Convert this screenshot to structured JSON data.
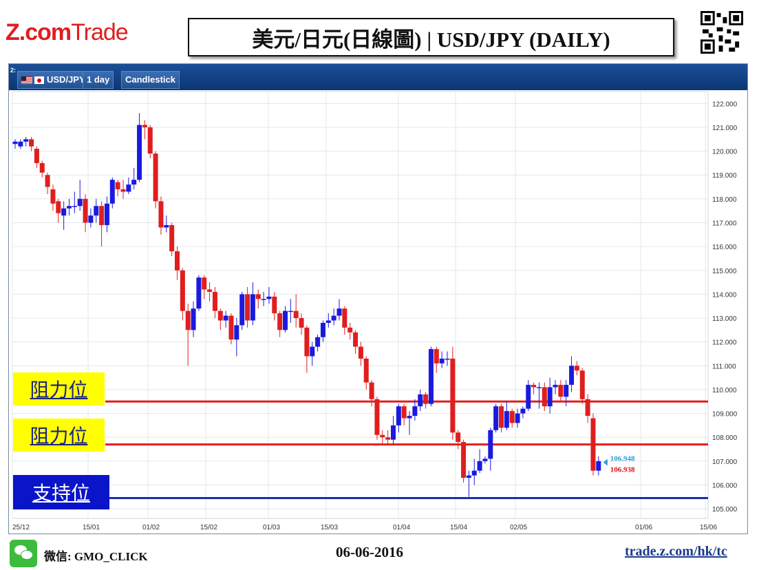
{
  "header": {
    "logo_main": "Z.com",
    "logo_sub": "Trade",
    "title": "美元/日元(日線圖) | USD/JPY (DAILY)"
  },
  "toolbar": {
    "panel_number": "2:",
    "symbol": "USD/JPY",
    "timeframe": "1 day",
    "chart_style": "Candlestick"
  },
  "levels": [
    {
      "label": "阻力位",
      "price": 109.5,
      "bg": "#ffff00",
      "fg": "#1a237e",
      "line": "#e01e1e"
    },
    {
      "label": "阻力位",
      "price": 107.7,
      "bg": "#ffff00",
      "fg": "#1a237e",
      "line": "#e01e1e"
    },
    {
      "label": "支持位",
      "price": 105.45,
      "bg": "#0a14c8",
      "fg": "#ffffff",
      "line": "#1a2ea8"
    }
  ],
  "price_tags": {
    "bid": "106.948",
    "ask": "106.938",
    "bid_color": "#2a9bd6",
    "ask_color": "#d01818"
  },
  "footer": {
    "wechat": "微信: GMO_CLICK",
    "date": "06-06-2016",
    "url": "trade.z.com/hk/tc"
  },
  "colors": {
    "up": "#1a1adf",
    "down": "#e01e1e",
    "toolbar": "#1a4f98"
  },
  "chart_data": {
    "type": "candlestick",
    "ylim": [
      104.6,
      122.5
    ],
    "y_ticks": [
      "122.000",
      "121.000",
      "120.000",
      "119.000",
      "118.000",
      "117.000",
      "116.000",
      "115.000",
      "114.000",
      "113.000",
      "112.000",
      "111.000",
      "110.000",
      "109.000",
      "108.000",
      "107.000",
      "106.000",
      "105.000"
    ],
    "x_ticks": [
      "25/12",
      "15/01",
      "01/02",
      "15/02",
      "01/03",
      "15/03",
      "01/04",
      "15/04",
      "02/05",
      "01/06",
      "15/06"
    ],
    "candles": [
      [
        120.3,
        120.4,
        120.1,
        120.5
      ],
      [
        120.2,
        120.4,
        120.1,
        120.5
      ],
      [
        120.4,
        120.5,
        120.2,
        120.6
      ],
      [
        120.5,
        120.2,
        120.0,
        120.6
      ],
      [
        120.1,
        119.5,
        119.3,
        120.2
      ],
      [
        119.5,
        119.1,
        118.9,
        119.6
      ],
      [
        119.0,
        118.5,
        118.2,
        119.1
      ],
      [
        118.4,
        117.8,
        117.5,
        118.6
      ],
      [
        117.9,
        117.4,
        117.0,
        118.0
      ],
      [
        117.3,
        117.6,
        116.7,
        117.9
      ],
      [
        117.6,
        117.7,
        117.3,
        118.0
      ],
      [
        117.7,
        117.7,
        117.4,
        118.3
      ],
      [
        117.7,
        118.0,
        117.5,
        118.8
      ],
      [
        118.0,
        117.0,
        116.6,
        118.2
      ],
      [
        117.0,
        117.3,
        116.8,
        117.6
      ],
      [
        117.3,
        117.7,
        117.0,
        118.0
      ],
      [
        117.7,
        116.9,
        116.0,
        117.9
      ],
      [
        116.9,
        117.8,
        116.6,
        118.1
      ],
      [
        117.8,
        118.8,
        117.6,
        118.9
      ],
      [
        118.7,
        118.4,
        118.1,
        118.8
      ],
      [
        118.4,
        118.3,
        118.0,
        118.8
      ],
      [
        118.3,
        118.6,
        118.2,
        118.9
      ],
      [
        118.6,
        118.8,
        118.4,
        119.3
      ],
      [
        118.8,
        121.1,
        118.7,
        121.6
      ],
      [
        121.1,
        121.0,
        120.5,
        121.3
      ],
      [
        121.0,
        119.9,
        119.7,
        121.1
      ],
      [
        119.9,
        117.9,
        117.6,
        120.0
      ],
      [
        117.9,
        116.8,
        116.5,
        118.1
      ],
      [
        116.8,
        116.9,
        116.6,
        117.3
      ],
      [
        116.9,
        115.8,
        115.6,
        117.0
      ],
      [
        115.8,
        115.0,
        114.6,
        116.0
      ],
      [
        115.0,
        113.3,
        112.9,
        115.1
      ],
      [
        113.3,
        112.5,
        111.0,
        113.6
      ],
      [
        112.5,
        113.4,
        112.2,
        113.7
      ],
      [
        113.4,
        114.7,
        113.3,
        114.8
      ],
      [
        114.7,
        114.2,
        113.8,
        114.8
      ],
      [
        114.2,
        114.1,
        113.7,
        114.5
      ],
      [
        114.1,
        113.3,
        113.0,
        114.3
      ],
      [
        113.3,
        112.9,
        112.5,
        113.4
      ],
      [
        112.9,
        113.1,
        112.6,
        113.3
      ],
      [
        113.1,
        112.1,
        111.9,
        113.2
      ],
      [
        112.1,
        112.7,
        111.4,
        113.0
      ],
      [
        112.7,
        114.0,
        112.5,
        114.1
      ],
      [
        114.0,
        112.9,
        112.6,
        114.3
      ],
      [
        112.9,
        114.0,
        112.7,
        114.5
      ],
      [
        114.0,
        113.8,
        113.4,
        114.2
      ],
      [
        113.8,
        113.8,
        113.5,
        114.1
      ],
      [
        113.8,
        113.9,
        113.6,
        114.3
      ],
      [
        113.9,
        113.2,
        112.9,
        114.1
      ],
      [
        113.2,
        112.5,
        112.2,
        113.3
      ],
      [
        112.5,
        113.3,
        112.4,
        113.5
      ],
      [
        113.3,
        113.3,
        112.8,
        113.8
      ],
      [
        113.3,
        113.0,
        112.6,
        114.0
      ],
      [
        113.0,
        112.6,
        112.3,
        113.2
      ],
      [
        112.6,
        111.4,
        110.7,
        112.7
      ],
      [
        111.4,
        111.8,
        111.0,
        112.0
      ],
      [
        111.8,
        112.2,
        111.6,
        112.3
      ],
      [
        112.2,
        112.8,
        112.0,
        112.9
      ],
      [
        112.8,
        112.9,
        112.6,
        113.2
      ],
      [
        112.9,
        113.1,
        112.7,
        113.4
      ],
      [
        113.1,
        113.4,
        112.9,
        113.8
      ],
      [
        113.4,
        112.6,
        112.3,
        113.5
      ],
      [
        112.6,
        112.4,
        112.1,
        112.8
      ],
      [
        112.4,
        111.8,
        111.5,
        112.5
      ],
      [
        111.8,
        111.3,
        111.0,
        112.0
      ],
      [
        111.3,
        110.3,
        110.0,
        111.4
      ],
      [
        110.3,
        109.6,
        109.3,
        110.4
      ],
      [
        109.6,
        108.1,
        107.9,
        109.7
      ],
      [
        108.1,
        108.0,
        107.7,
        108.3
      ],
      [
        108.0,
        107.9,
        107.7,
        108.3
      ],
      [
        107.9,
        108.5,
        107.7,
        108.9
      ],
      [
        108.5,
        109.3,
        108.2,
        109.4
      ],
      [
        109.3,
        108.8,
        108.5,
        109.4
      ],
      [
        108.8,
        108.9,
        108.1,
        109.1
      ],
      [
        108.9,
        109.3,
        108.7,
        109.6
      ],
      [
        109.3,
        109.8,
        109.1,
        110.0
      ],
      [
        109.8,
        109.4,
        109.2,
        109.9
      ],
      [
        109.4,
        111.7,
        109.3,
        111.8
      ],
      [
        111.7,
        111.1,
        110.7,
        111.8
      ],
      [
        111.1,
        111.3,
        110.9,
        111.6
      ],
      [
        111.3,
        111.3,
        111.0,
        111.6
      ],
      [
        111.3,
        108.2,
        107.9,
        111.8
      ],
      [
        108.2,
        107.8,
        107.5,
        108.3
      ],
      [
        107.8,
        106.3,
        106.1,
        107.9
      ],
      [
        106.3,
        106.4,
        105.5,
        106.6
      ],
      [
        106.4,
        106.6,
        106.0,
        107.1
      ],
      [
        106.6,
        107.0,
        106.5,
        107.5
      ],
      [
        107.0,
        107.1,
        106.9,
        107.2
      ],
      [
        107.1,
        108.3,
        106.6,
        108.4
      ],
      [
        108.3,
        109.3,
        108.2,
        109.4
      ],
      [
        109.3,
        108.4,
        108.2,
        109.4
      ],
      [
        108.4,
        109.1,
        108.3,
        109.5
      ],
      [
        109.1,
        108.6,
        108.4,
        109.2
      ],
      [
        108.6,
        109.0,
        108.4,
        109.2
      ],
      [
        109.0,
        109.2,
        108.8,
        109.3
      ],
      [
        109.2,
        110.2,
        109.1,
        110.4
      ],
      [
        110.2,
        110.1,
        109.8,
        110.3
      ],
      [
        110.1,
        110.1,
        109.2,
        110.3
      ],
      [
        110.1,
        109.3,
        109.1,
        110.3
      ],
      [
        109.3,
        110.1,
        109.0,
        110.5
      ],
      [
        110.1,
        110.2,
        109.8,
        110.4
      ],
      [
        110.2,
        109.7,
        109.5,
        110.4
      ],
      [
        109.7,
        110.2,
        109.3,
        110.4
      ],
      [
        110.2,
        111.0,
        109.9,
        111.4
      ],
      [
        111.0,
        110.8,
        110.6,
        111.2
      ],
      [
        110.8,
        109.6,
        109.4,
        110.9
      ],
      [
        109.6,
        108.9,
        108.6,
        109.8
      ],
      [
        108.8,
        106.6,
        106.4,
        109.0
      ],
      [
        106.6,
        107.0,
        106.4,
        107.2
      ]
    ]
  }
}
